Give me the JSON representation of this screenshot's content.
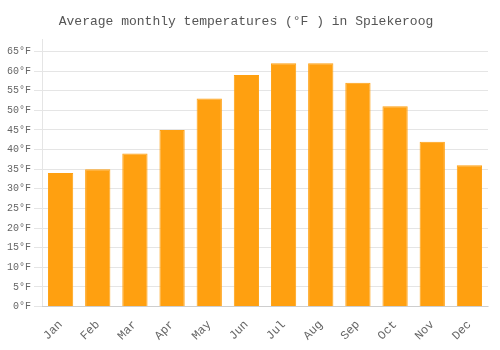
{
  "chart_data": {
    "type": "bar",
    "title": "Average monthly temperatures (°F ) in Spiekeroog",
    "categories": [
      "Jan",
      "Feb",
      "Mar",
      "Apr",
      "May",
      "Jun",
      "Jul",
      "Aug",
      "Sep",
      "Oct",
      "Nov",
      "Dec"
    ],
    "values": [
      34,
      35,
      39,
      45,
      53,
      59,
      62,
      62,
      57,
      51,
      42,
      36
    ],
    "color": "#FFA010",
    "ylim": [
      0,
      68
    ],
    "yticks": [
      {
        "value": 0,
        "label": "0°F"
      },
      {
        "value": 5,
        "label": "5°F"
      },
      {
        "value": 10,
        "label": "10°F"
      },
      {
        "value": 15,
        "label": "15°F"
      },
      {
        "value": 20,
        "label": "20°F"
      },
      {
        "value": 25,
        "label": "25°F"
      },
      {
        "value": 30,
        "label": "30°F"
      },
      {
        "value": 35,
        "label": "35°F"
      },
      {
        "value": 40,
        "label": "40°F"
      },
      {
        "value": 45,
        "label": "45°F"
      },
      {
        "value": 50,
        "label": "50°F"
      },
      {
        "value": 55,
        "label": "55°F"
      },
      {
        "value": 60,
        "label": "60°F"
      },
      {
        "value": 65,
        "label": "65°F"
      }
    ],
    "grid": true
  }
}
